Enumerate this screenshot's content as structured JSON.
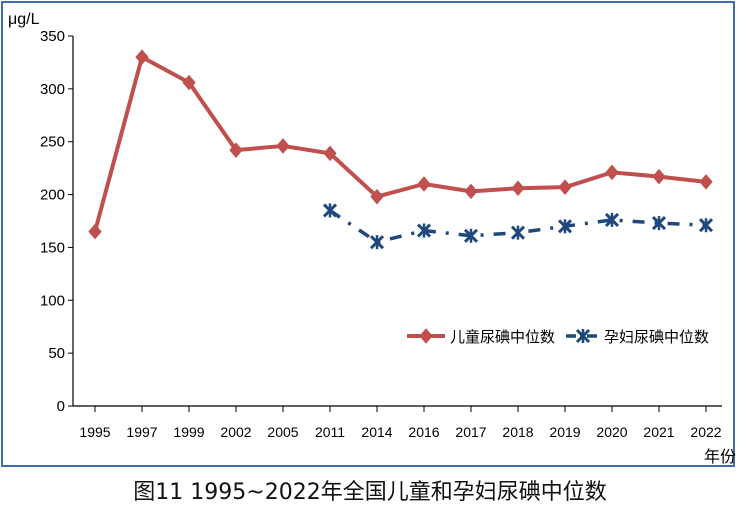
{
  "chart_data": {
    "type": "line",
    "ylabel": "μg/L",
    "xlabel": "年份",
    "ylim": [
      0,
      350
    ],
    "yticks": [
      0,
      50,
      100,
      150,
      200,
      250,
      300,
      350
    ],
    "categories": [
      "1995",
      "1997",
      "1999",
      "2002",
      "2005",
      "2011",
      "2014",
      "2016",
      "2017",
      "2018",
      "2019",
      "2020",
      "2021",
      "2022"
    ],
    "grid": false,
    "legend_position": "right",
    "series": [
      {
        "name": "儿童尿碘中位数",
        "color": "#c0504d",
        "marker": "diamond",
        "values": [
          165,
          330,
          306,
          242,
          246,
          239,
          198,
          210,
          203,
          206,
          207,
          221,
          217,
          212
        ]
      },
      {
        "name": "孕妇尿碘中位数",
        "color": "#1f497d",
        "marker": "star",
        "values": [
          null,
          null,
          null,
          null,
          null,
          185,
          155,
          166,
          161,
          164,
          170,
          176,
          173,
          171
        ]
      }
    ]
  },
  "caption": "图11  1995~2022年全国儿童和孕妇尿碘中位数"
}
